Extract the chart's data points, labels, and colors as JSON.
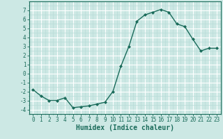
{
  "x": [
    0,
    1,
    2,
    3,
    4,
    5,
    6,
    7,
    8,
    9,
    10,
    11,
    12,
    13,
    14,
    15,
    16,
    17,
    18,
    19,
    20,
    21,
    22,
    23
  ],
  "y": [
    -1.8,
    -2.5,
    -3.0,
    -3.0,
    -2.7,
    -3.8,
    -3.7,
    -3.6,
    -3.4,
    -3.2,
    -2.0,
    0.8,
    3.0,
    5.8,
    6.5,
    6.8,
    7.1,
    6.8,
    5.5,
    5.2,
    3.8,
    2.5,
    2.8,
    2.8
  ],
  "line_color": "#1a6b5a",
  "marker": "D",
  "marker_size": 2.0,
  "bg_color": "#cce8e4",
  "grid_major_color": "#ffffff",
  "grid_minor_color": "#b8dcd8",
  "xlabel": "Humidex (Indice chaleur)",
  "xlim": [
    -0.5,
    23.5
  ],
  "ylim": [
    -4.5,
    8.0
  ],
  "yticks": [
    -4,
    -3,
    -2,
    -1,
    0,
    1,
    2,
    3,
    4,
    5,
    6,
    7
  ],
  "xticks": [
    0,
    1,
    2,
    3,
    4,
    5,
    6,
    7,
    8,
    9,
    10,
    11,
    12,
    13,
    14,
    15,
    16,
    17,
    18,
    19,
    20,
    21,
    22,
    23
  ],
  "tick_fontsize": 5.5,
  "xlabel_fontsize": 7.0,
  "line_width": 1.0
}
